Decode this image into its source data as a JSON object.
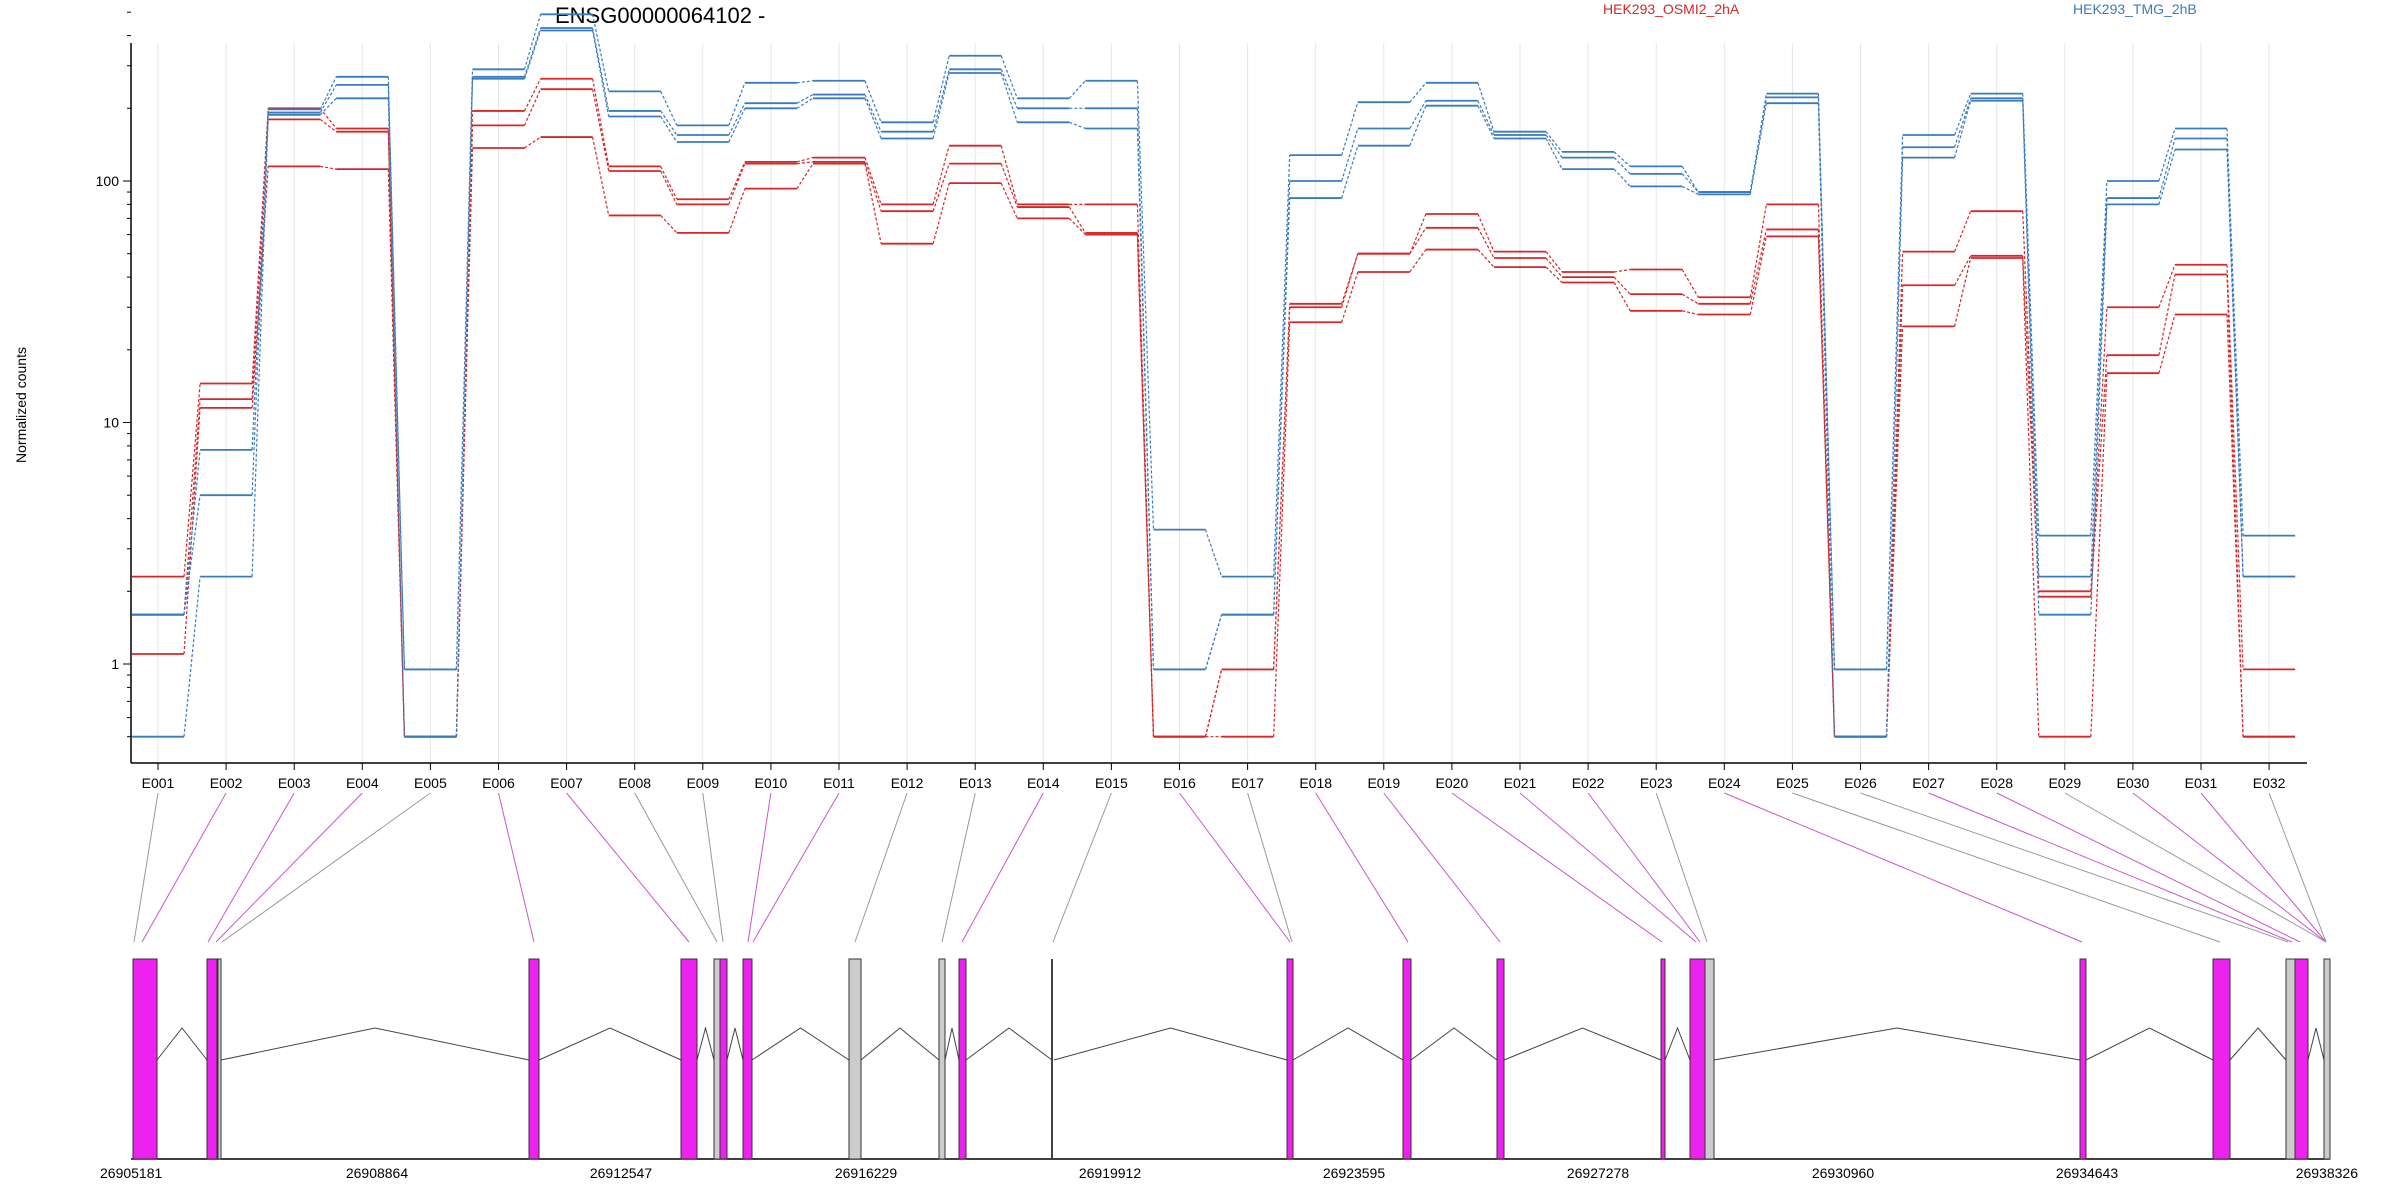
{
  "chart_data": {
    "type": "line",
    "title": "ENSG00000064102 -",
    "ylabel": "Normalized counts",
    "yscale": "log",
    "ylim": [
      0.5,
      700
    ],
    "yticks": [
      "1",
      "10",
      "100"
    ],
    "categories": [
      "E001",
      "E002",
      "E003",
      "E004",
      "E005",
      "E006",
      "E007",
      "E008",
      "E009",
      "E010",
      "E011",
      "E012",
      "E013",
      "E014",
      "E015",
      "E016",
      "E017",
      "E018",
      "E019",
      "E020",
      "E021",
      "E022",
      "E023",
      "E024",
      "E025",
      "E026",
      "E027",
      "E028",
      "E029",
      "E030",
      "E031",
      "E032"
    ],
    "legend": [
      {
        "label": "HEK293_OSMI2_2hA",
        "color": "#d62728"
      },
      {
        "label": "HEK293_TMG_2hB",
        "color": "#3a7bbf"
      }
    ],
    "series": [
      {
        "group": "HEK293_OSMI2_2hA",
        "color": "#d62728",
        "values": [
          2.3,
          14.5,
          200,
          165,
          0.5,
          195,
          265,
          115,
          84,
          120,
          125,
          80,
          140,
          80,
          80,
          0.5,
          0.95,
          31,
          50,
          73,
          51,
          42,
          43,
          33,
          80,
          0.5,
          51,
          75,
          2,
          30,
          45,
          0.95
        ]
      },
      {
        "group": "HEK293_OSMI2_2hA",
        "color": "#d62728",
        "values": [
          1.6,
          12.5,
          180,
          160,
          0.5,
          170,
          240,
          110,
          80,
          118,
          120,
          75,
          118,
          78,
          61,
          0.5,
          0.95,
          30,
          50,
          64,
          48,
          40,
          34,
          31,
          63,
          0.5,
          37,
          49,
          1.9,
          19,
          41,
          0.5
        ]
      },
      {
        "group": "HEK293_OSMI2_2hA",
        "color": "#d62728",
        "values": [
          1.1,
          11.5,
          115,
          112,
          0.5,
          137,
          152,
          72,
          61,
          93,
          118,
          55,
          98,
          70,
          60,
          0.5,
          0.5,
          26,
          42,
          52,
          44,
          38,
          29,
          28,
          59,
          0.5,
          25,
          48,
          0.5,
          16,
          28,
          0.5
        ]
      },
      {
        "group": "HEK293_TMG_2hB",
        "color": "#3a7bbf",
        "values": [
          1.6,
          7.7,
          198,
          270,
          0.95,
          290,
          490,
          235,
          170,
          255,
          260,
          175,
          330,
          220,
          260,
          3.6,
          2.3,
          128,
          212,
          255,
          160,
          132,
          115,
          90,
          230,
          0.95,
          155,
          230,
          3.4,
          100,
          165,
          3.4
        ]
      },
      {
        "group": "HEK293_TMG_2hB",
        "color": "#3a7bbf",
        "values": [
          1.6,
          5.0,
          192,
          250,
          0.95,
          270,
          430,
          195,
          155,
          210,
          228,
          160,
          290,
          200,
          200,
          0.95,
          1.6,
          100,
          165,
          215,
          155,
          125,
          107,
          90,
          222,
          0.95,
          138,
          220,
          2.3,
          85,
          150,
          2.3
        ]
      },
      {
        "group": "HEK293_TMG_2hB",
        "color": "#3a7bbf",
        "values": [
          0.5,
          2.3,
          188,
          220,
          0.5,
          265,
          420,
          185,
          145,
          200,
          220,
          150,
          280,
          175,
          165,
          0.95,
          1.6,
          85,
          140,
          205,
          150,
          112,
          95,
          88,
          210,
          0.5,
          125,
          215,
          1.6,
          80,
          135,
          2.3
        ]
      }
    ],
    "gene_model": {
      "coordinates": [
        "26905181",
        "26908864",
        "26912547",
        "26916229",
        "26919912",
        "26923595",
        "26927278",
        "26930960",
        "26934643",
        "26938326"
      ],
      "exon_color": "#ee22ee",
      "other_color": "#cccccc"
    },
    "grid": true
  }
}
